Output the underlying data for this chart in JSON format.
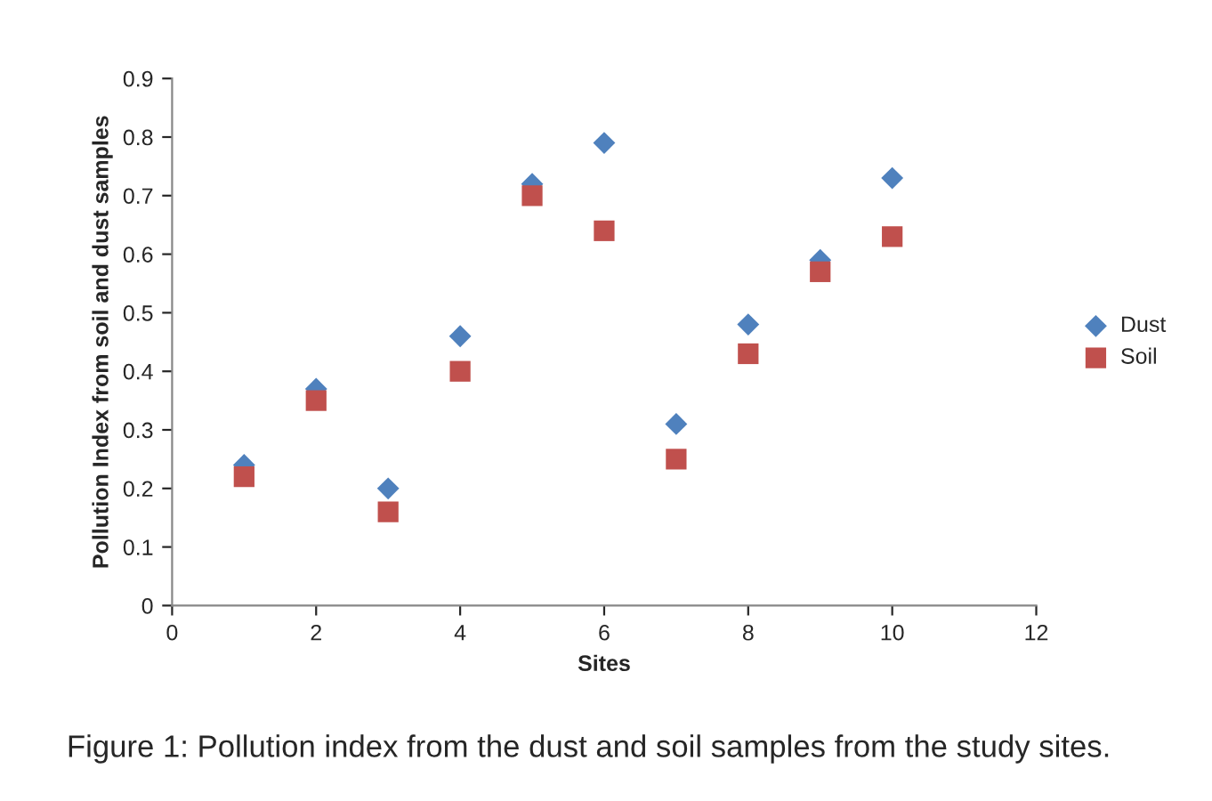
{
  "chart_data": {
    "type": "scatter",
    "xlabel": "Sites",
    "ylabel": "Pollution Index from soil and dust samples",
    "x": [
      1,
      2,
      3,
      4,
      5,
      6,
      7,
      8,
      9,
      10
    ],
    "series": [
      {
        "name": "Dust",
        "color": "#4f81bd",
        "marker": "diamond",
        "values": [
          0.24,
          0.37,
          0.2,
          0.46,
          0.72,
          0.79,
          0.31,
          0.48,
          0.59,
          0.73
        ]
      },
      {
        "name": "Soil",
        "color": "#c0504d",
        "marker": "square",
        "values": [
          0.22,
          0.35,
          0.16,
          0.4,
          0.7,
          0.64,
          0.25,
          0.43,
          0.57,
          0.63
        ]
      }
    ],
    "xlim": [
      0,
      12
    ],
    "xticks": [
      0,
      2,
      4,
      6,
      8,
      10,
      12
    ],
    "ylim": [
      0,
      0.9
    ],
    "yticks": [
      {
        "value": 0,
        "label": "0"
      },
      0.1,
      0.2,
      0.3,
      0.4,
      0.5,
      0.6,
      0.7,
      0.8,
      0.9
    ],
    "grid": false,
    "legend": "right",
    "annotations": [
      "Figure 1: Pollution index from the dust and soil samples from the study sites."
    ]
  }
}
